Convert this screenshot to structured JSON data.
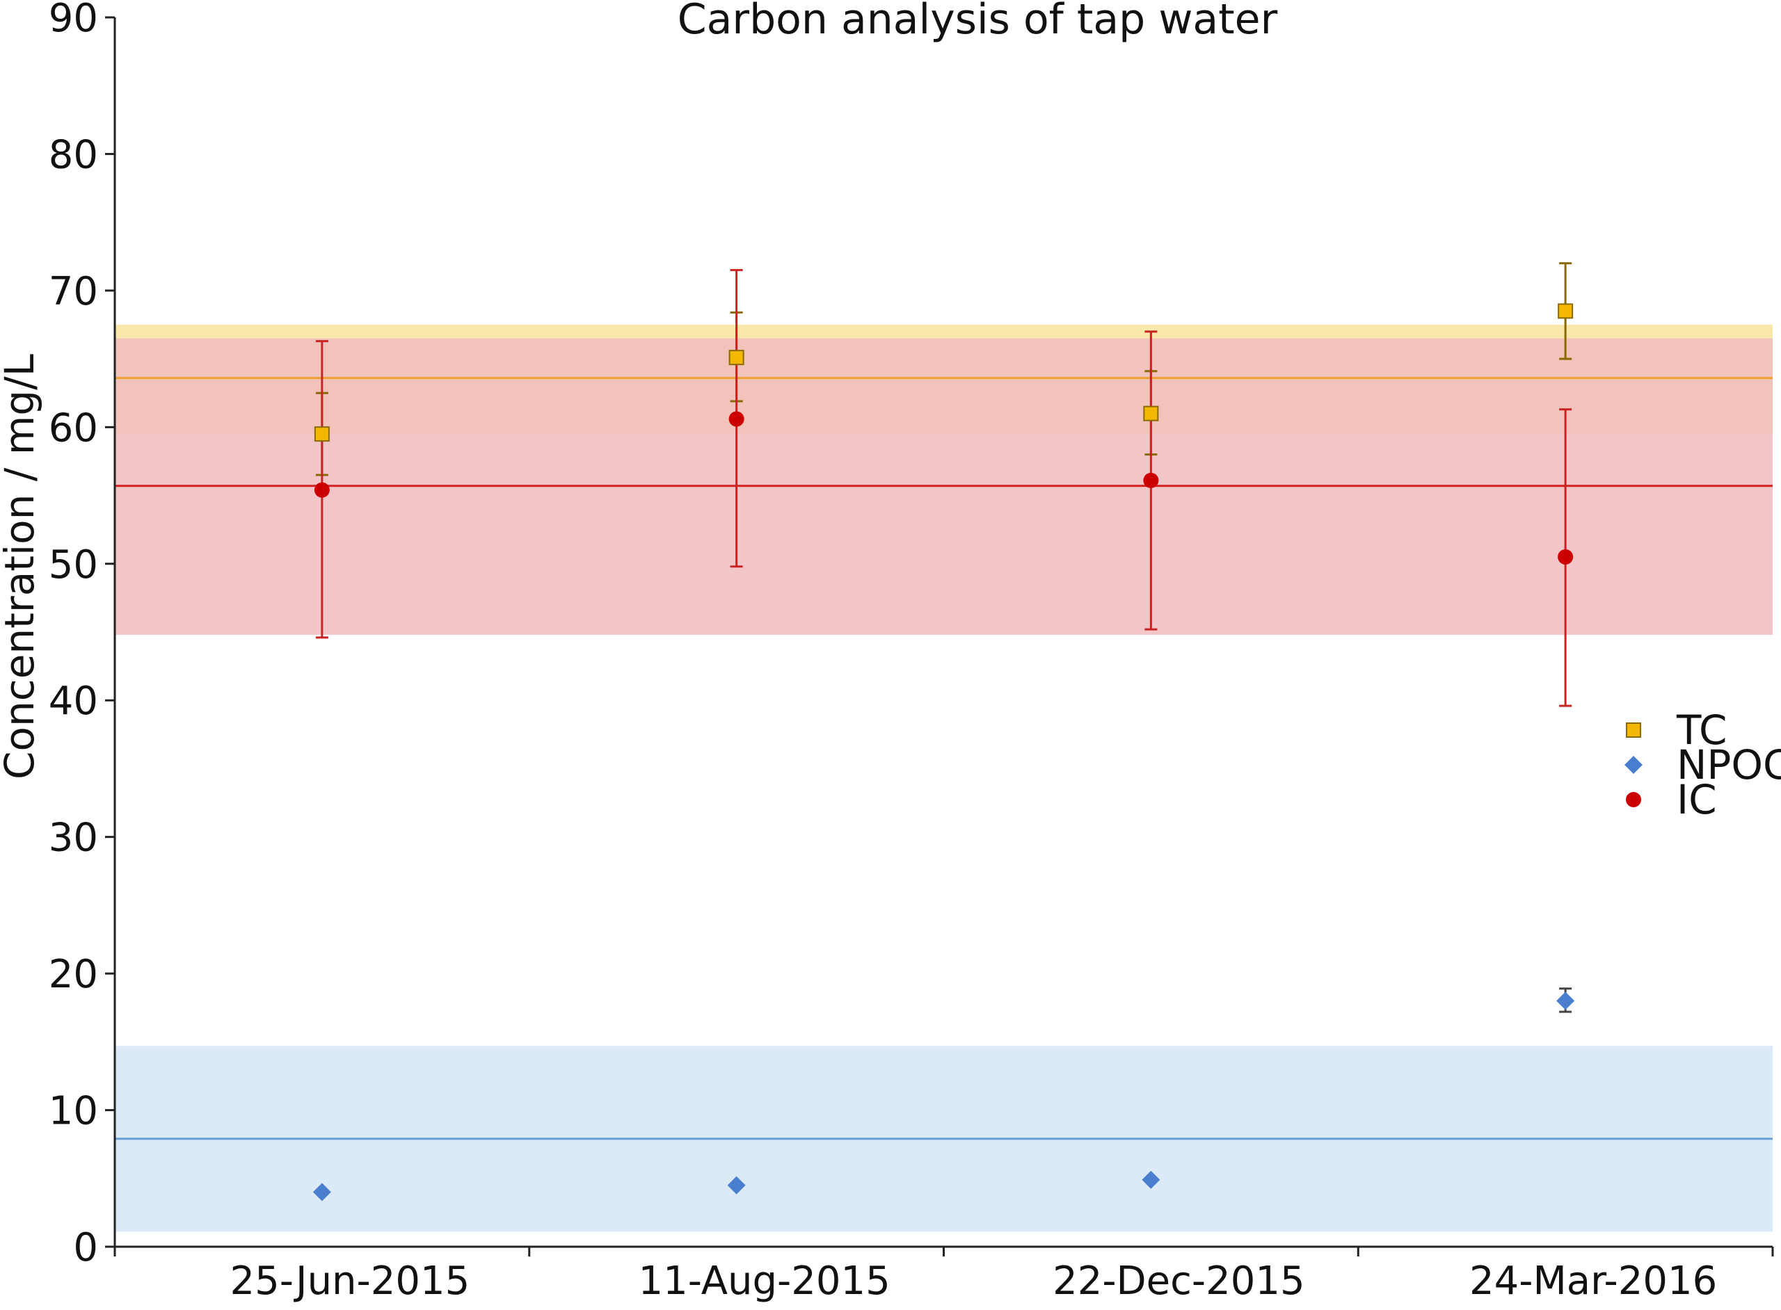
{
  "chart_data": {
    "type": "scatter",
    "title": "Carbon analysis of tap water",
    "xlabel": "",
    "ylabel": "Concentration / mg/L",
    "categories": [
      "25-Jun-2015",
      "11-Aug-2015",
      "22-Dec-2015",
      "24-Mar-2016"
    ],
    "ylim": [
      0,
      90
    ],
    "yticks": [
      "0",
      "10",
      "20",
      "30",
      "40",
      "50",
      "60",
      "70",
      "80",
      "90"
    ],
    "grid": false,
    "legend_position": "right",
    "series": [
      {
        "name": "TC",
        "marker": "square",
        "color": "#f5b800",
        "edge_color": "#8a6a00",
        "errcolor": "#8a6a00",
        "values": [
          59.5,
          65.1,
          61.0,
          68.5
        ],
        "err_low": [
          56.5,
          61.9,
          58.0,
          65.0
        ],
        "err_high": [
          62.5,
          68.4,
          64.1,
          72.0
        ],
        "mean": 63.6,
        "band": [
          59.5,
          67.5
        ],
        "line_color": "#f0a030",
        "band_color": "#f8e49a"
      },
      {
        "name": "NPOC",
        "marker": "diamond",
        "color": "#4a7fd0",
        "edge_color": "#4a7fd0",
        "errcolor": "#444444",
        "values": [
          4.0,
          4.5,
          4.9,
          18.0
        ],
        "err_low": [
          null,
          null,
          null,
          17.2
        ],
        "err_high": [
          null,
          null,
          null,
          18.9
        ],
        "mean": 7.9,
        "band": [
          1.1,
          14.7
        ],
        "line_color": "#6aa0d8",
        "band_color": "#d6e5f5"
      },
      {
        "name": "IC",
        "marker": "circle",
        "color": "#cc0000",
        "edge_color": "#cc0000",
        "errcolor": "#cc2222",
        "values": [
          55.4,
          60.6,
          56.1,
          50.5
        ],
        "err_low": [
          44.6,
          49.8,
          45.2,
          39.6
        ],
        "err_high": [
          66.3,
          71.5,
          67.0,
          61.3
        ],
        "mean": 55.7,
        "band": [
          44.8,
          66.5
        ],
        "line_color": "#d42020",
        "band_color": "#f0bcbe"
      }
    ]
  }
}
